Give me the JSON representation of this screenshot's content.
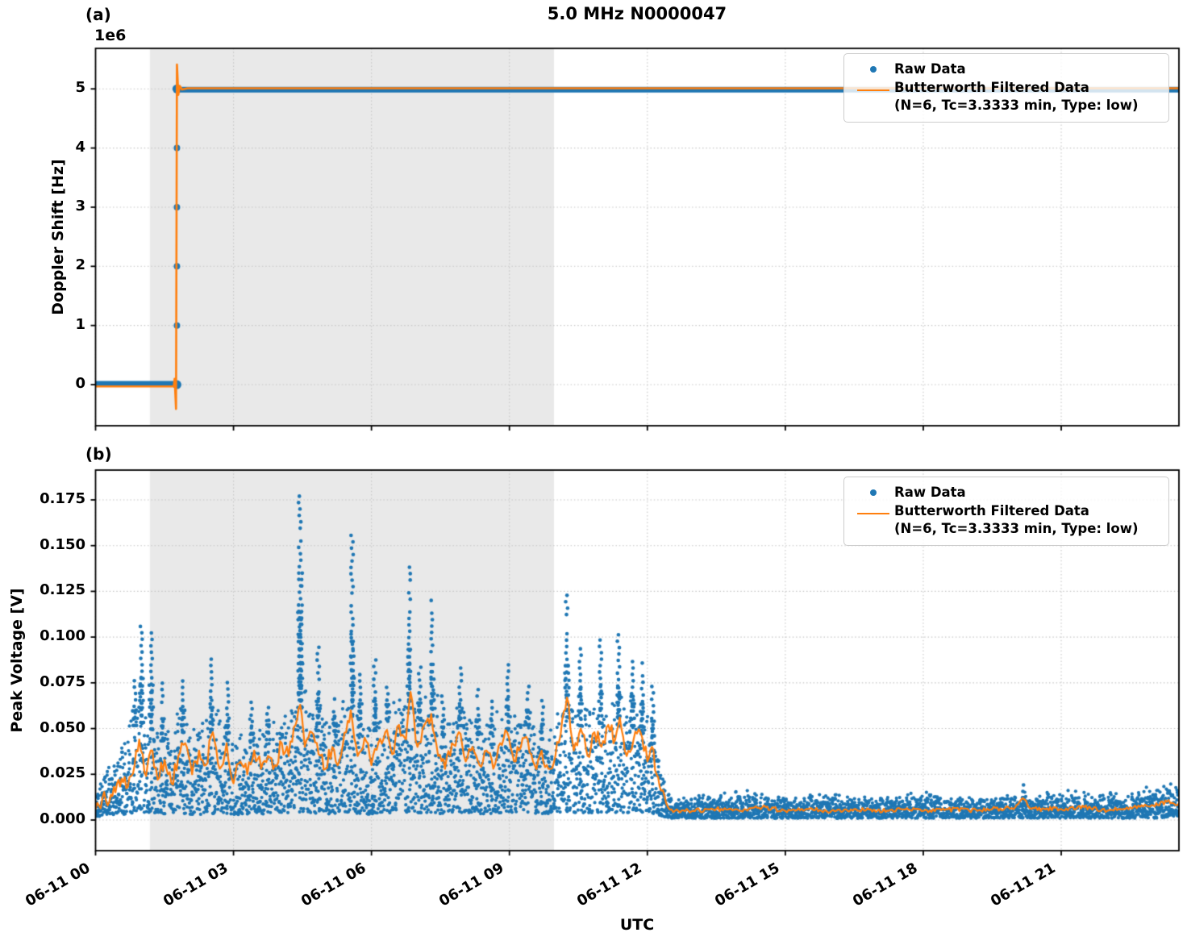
{
  "title": "5.0 MHz N0000047",
  "xlabel": "UTC",
  "panels": {
    "a": {
      "tag": "(a)",
      "offset_text": "1e6",
      "ylabel": "Doppler Shift [Hz]"
    },
    "b": {
      "tag": "(b)",
      "ylabel": "Peak Voltage [V]"
    }
  },
  "legend": {
    "raw": "Raw Data",
    "filtered_line1": "Butterworth Filtered Data",
    "filtered_line2": "(N=6, Tc=3.3333 min, Type: low)"
  },
  "colors": {
    "raw": "#1f77b4",
    "filtered": "#ff7f0e",
    "shade": "#e9e9e9",
    "grid": "#c6c6c6",
    "frame": "#000000"
  },
  "x_ticks": [
    {
      "hour": 0,
      "label": "06-11 00"
    },
    {
      "hour": 3,
      "label": "06-11 03"
    },
    {
      "hour": 6,
      "label": "06-11 06"
    },
    {
      "hour": 9,
      "label": "06-11 09"
    },
    {
      "hour": 12,
      "label": "06-11 12"
    },
    {
      "hour": 15,
      "label": "06-11 15"
    },
    {
      "hour": 18,
      "label": "06-11 18"
    },
    {
      "hour": 21,
      "label": "06-11 21"
    }
  ],
  "chart_data": [
    {
      "panel": "a",
      "type": "scatter",
      "title": "5.0 MHz N0000047",
      "xlabel": "UTC",
      "ylabel": "Doppler Shift [Hz]",
      "y_units": "1e6 Hz",
      "x_hours_range": [
        0,
        23.56
      ],
      "ylim": [
        -0.695,
        5.685
      ],
      "yticks": [
        0,
        1,
        2,
        3,
        4,
        5
      ],
      "ytick_labels": [
        "0",
        "1",
        "2",
        "3",
        "4",
        "5"
      ],
      "shade_hours": [
        1.18,
        9.97
      ],
      "raw": {
        "step_time_h": 1.77,
        "level_before": 0.0,
        "level_after": 5.0,
        "transition_markers": [
          0,
          1,
          2,
          3,
          4,
          5
        ]
      },
      "filtered_path": [
        [
          0.0,
          -0.03
        ],
        [
          1.7,
          -0.03
        ],
        [
          1.72,
          0.1
        ],
        [
          1.75,
          -0.41
        ],
        [
          1.77,
          5.41
        ],
        [
          1.8,
          4.9
        ],
        [
          1.83,
          5.05
        ],
        [
          1.88,
          4.99
        ],
        [
          2.0,
          5.01
        ],
        [
          23.56,
          5.01
        ]
      ]
    },
    {
      "panel": "b",
      "type": "scatter",
      "xlabel": "UTC",
      "ylabel": "Peak Voltage [V]",
      "y_units": "V",
      "x_hours_range": [
        0,
        23.56
      ],
      "ylim": [
        -0.01675,
        0.1913
      ],
      "yticks": [
        0.0,
        0.025,
        0.05,
        0.075,
        0.1,
        0.125,
        0.15,
        0.175
      ],
      "ytick_labels": [
        "0.000",
        "0.025",
        "0.050",
        "0.075",
        "0.100",
        "0.125",
        "0.150",
        "0.175"
      ],
      "shade_hours": [
        1.18,
        9.97
      ],
      "band": [
        [
          0.0,
          0.002,
          0.012
        ],
        [
          0.15,
          0.002,
          0.018
        ],
        [
          0.3,
          0.003,
          0.026
        ],
        [
          0.6,
          0.003,
          0.035
        ],
        [
          0.9,
          0.004,
          0.055
        ],
        [
          1.2,
          0.004,
          0.05
        ],
        [
          1.5,
          0.003,
          0.042
        ],
        [
          1.8,
          0.004,
          0.052
        ],
        [
          2.1,
          0.003,
          0.04
        ],
        [
          2.4,
          0.003,
          0.048
        ],
        [
          2.7,
          0.004,
          0.052
        ],
        [
          3.0,
          0.003,
          0.038
        ],
        [
          3.3,
          0.003,
          0.042
        ],
        [
          3.6,
          0.003,
          0.046
        ],
        [
          3.9,
          0.004,
          0.042
        ],
        [
          4.2,
          0.004,
          0.05
        ],
        [
          4.45,
          0.004,
          0.062
        ],
        [
          4.7,
          0.004,
          0.055
        ],
        [
          5.0,
          0.003,
          0.042
        ],
        [
          5.3,
          0.004,
          0.052
        ],
        [
          5.6,
          0.004,
          0.058
        ],
        [
          5.9,
          0.003,
          0.045
        ],
        [
          6.2,
          0.004,
          0.052
        ],
        [
          6.5,
          0.004,
          0.058
        ],
        [
          6.8,
          0.004,
          0.062
        ],
        [
          7.1,
          0.004,
          0.05
        ],
        [
          7.35,
          0.004,
          0.058
        ],
        [
          7.6,
          0.003,
          0.044
        ],
        [
          7.9,
          0.004,
          0.052
        ],
        [
          8.2,
          0.004,
          0.048
        ],
        [
          8.5,
          0.003,
          0.045
        ],
        [
          8.8,
          0.004,
          0.052
        ],
        [
          9.1,
          0.004,
          0.048
        ],
        [
          9.4,
          0.004,
          0.052
        ],
        [
          9.7,
          0.003,
          0.044
        ],
        [
          10.0,
          0.004,
          0.048
        ],
        [
          10.3,
          0.004,
          0.058
        ],
        [
          10.6,
          0.004,
          0.05
        ],
        [
          10.9,
          0.004,
          0.054
        ],
        [
          11.2,
          0.004,
          0.05
        ],
        [
          11.5,
          0.004,
          0.054
        ],
        [
          11.8,
          0.004,
          0.05
        ],
        [
          12.0,
          0.004,
          0.044
        ],
        [
          12.2,
          0.003,
          0.034
        ],
        [
          12.35,
          0.002,
          0.022
        ],
        [
          12.5,
          0.001,
          0.01
        ],
        [
          13.0,
          0.001,
          0.011
        ],
        [
          14.0,
          0.001,
          0.013
        ],
        [
          15.0,
          0.001,
          0.011
        ],
        [
          16.0,
          0.001,
          0.012
        ],
        [
          17.0,
          0.001,
          0.011
        ],
        [
          18.0,
          0.001,
          0.013
        ],
        [
          19.0,
          0.001,
          0.011
        ],
        [
          20.0,
          0.001,
          0.012
        ],
        [
          21.0,
          0.001,
          0.013
        ],
        [
          22.0,
          0.001,
          0.012
        ],
        [
          23.0,
          0.001,
          0.015
        ],
        [
          23.56,
          0.002,
          0.017
        ]
      ],
      "spikes": [
        [
          0.85,
          0.078
        ],
        [
          1.0,
          0.108
        ],
        [
          1.21,
          0.105
        ],
        [
          1.45,
          0.075
        ],
        [
          1.9,
          0.083
        ],
        [
          2.51,
          0.09
        ],
        [
          2.88,
          0.078
        ],
        [
          3.4,
          0.065
        ],
        [
          3.75,
          0.062
        ],
        [
          4.44,
          0.18
        ],
        [
          4.47,
          0.135
        ],
        [
          4.84,
          0.095
        ],
        [
          5.2,
          0.068
        ],
        [
          5.58,
          0.157
        ],
        [
          5.75,
          0.08
        ],
        [
          6.07,
          0.088
        ],
        [
          6.35,
          0.075
        ],
        [
          6.82,
          0.14
        ],
        [
          7.05,
          0.085
        ],
        [
          7.32,
          0.122
        ],
        [
          7.55,
          0.07
        ],
        [
          7.93,
          0.085
        ],
        [
          8.32,
          0.072
        ],
        [
          8.6,
          0.068
        ],
        [
          8.96,
          0.088
        ],
        [
          9.4,
          0.075
        ],
        [
          9.72,
          0.068
        ],
        [
          10.25,
          0.125
        ],
        [
          10.54,
          0.097
        ],
        [
          10.98,
          0.1
        ],
        [
          11.37,
          0.104
        ],
        [
          11.68,
          0.088
        ],
        [
          11.89,
          0.089
        ],
        [
          12.12,
          0.075
        ],
        [
          20.16,
          0.021
        ]
      ],
      "filtered": [
        [
          0.0,
          0.006
        ],
        [
          0.15,
          0.012
        ],
        [
          0.3,
          0.01
        ],
        [
          0.5,
          0.022
        ],
        [
          0.7,
          0.018
        ],
        [
          0.85,
          0.03
        ],
        [
          0.95,
          0.044
        ],
        [
          1.1,
          0.024
        ],
        [
          1.2,
          0.038
        ],
        [
          1.35,
          0.022
        ],
        [
          1.5,
          0.033
        ],
        [
          1.65,
          0.02
        ],
        [
          1.8,
          0.035
        ],
        [
          1.95,
          0.042
        ],
        [
          2.1,
          0.025
        ],
        [
          2.25,
          0.038
        ],
        [
          2.4,
          0.03
        ],
        [
          2.55,
          0.048
        ],
        [
          2.7,
          0.028
        ],
        [
          2.85,
          0.042
        ],
        [
          3.0,
          0.02
        ],
        [
          3.15,
          0.032
        ],
        [
          3.3,
          0.025
        ],
        [
          3.45,
          0.038
        ],
        [
          3.6,
          0.028
        ],
        [
          3.75,
          0.035
        ],
        [
          3.9,
          0.03
        ],
        [
          4.05,
          0.042
        ],
        [
          4.2,
          0.035
        ],
        [
          4.35,
          0.052
        ],
        [
          4.45,
          0.063
        ],
        [
          4.55,
          0.04
        ],
        [
          4.7,
          0.048
        ],
        [
          4.85,
          0.036
        ],
        [
          5.0,
          0.028
        ],
        [
          5.15,
          0.04
        ],
        [
          5.3,
          0.032
        ],
        [
          5.45,
          0.048
        ],
        [
          5.55,
          0.06
        ],
        [
          5.7,
          0.035
        ],
        [
          5.85,
          0.045
        ],
        [
          6.0,
          0.03
        ],
        [
          6.15,
          0.042
        ],
        [
          6.3,
          0.048
        ],
        [
          6.45,
          0.036
        ],
        [
          6.6,
          0.052
        ],
        [
          6.75,
          0.044
        ],
        [
          6.85,
          0.07
        ],
        [
          7.0,
          0.04
        ],
        [
          7.15,
          0.052
        ],
        [
          7.3,
          0.058
        ],
        [
          7.45,
          0.035
        ],
        [
          7.6,
          0.028
        ],
        [
          7.75,
          0.042
        ],
        [
          7.9,
          0.048
        ],
        [
          8.05,
          0.032
        ],
        [
          8.2,
          0.04
        ],
        [
          8.35,
          0.03
        ],
        [
          8.5,
          0.038
        ],
        [
          8.65,
          0.028
        ],
        [
          8.8,
          0.042
        ],
        [
          8.95,
          0.048
        ],
        [
          9.1,
          0.032
        ],
        [
          9.25,
          0.04
        ],
        [
          9.4,
          0.044
        ],
        [
          9.55,
          0.03
        ],
        [
          9.7,
          0.038
        ],
        [
          9.85,
          0.028
        ],
        [
          10.0,
          0.035
        ],
        [
          10.15,
          0.055
        ],
        [
          10.25,
          0.067
        ],
        [
          10.4,
          0.038
        ],
        [
          10.55,
          0.05
        ],
        [
          10.7,
          0.035
        ],
        [
          10.85,
          0.048
        ],
        [
          11.0,
          0.04
        ],
        [
          11.15,
          0.052
        ],
        [
          11.3,
          0.044
        ],
        [
          11.4,
          0.056
        ],
        [
          11.55,
          0.035
        ],
        [
          11.7,
          0.044
        ],
        [
          11.85,
          0.048
        ],
        [
          12.0,
          0.032
        ],
        [
          12.1,
          0.04
        ],
        [
          12.2,
          0.025
        ],
        [
          12.3,
          0.016
        ],
        [
          12.45,
          0.007
        ],
        [
          12.6,
          0.005
        ],
        [
          13.0,
          0.005
        ],
        [
          13.5,
          0.006
        ],
        [
          14.0,
          0.005
        ],
        [
          14.5,
          0.007
        ],
        [
          15.0,
          0.005
        ],
        [
          15.5,
          0.006
        ],
        [
          16.0,
          0.005
        ],
        [
          16.5,
          0.006
        ],
        [
          17.0,
          0.005
        ],
        [
          17.5,
          0.006
        ],
        [
          18.0,
          0.005
        ],
        [
          18.5,
          0.006
        ],
        [
          19.0,
          0.005
        ],
        [
          19.5,
          0.006
        ],
        [
          20.0,
          0.007
        ],
        [
          20.16,
          0.012
        ],
        [
          20.35,
          0.006
        ],
        [
          21.0,
          0.006
        ],
        [
          21.5,
          0.007
        ],
        [
          22.0,
          0.005
        ],
        [
          22.5,
          0.007
        ],
        [
          23.0,
          0.008
        ],
        [
          23.3,
          0.01
        ],
        [
          23.56,
          0.009
        ]
      ]
    }
  ]
}
